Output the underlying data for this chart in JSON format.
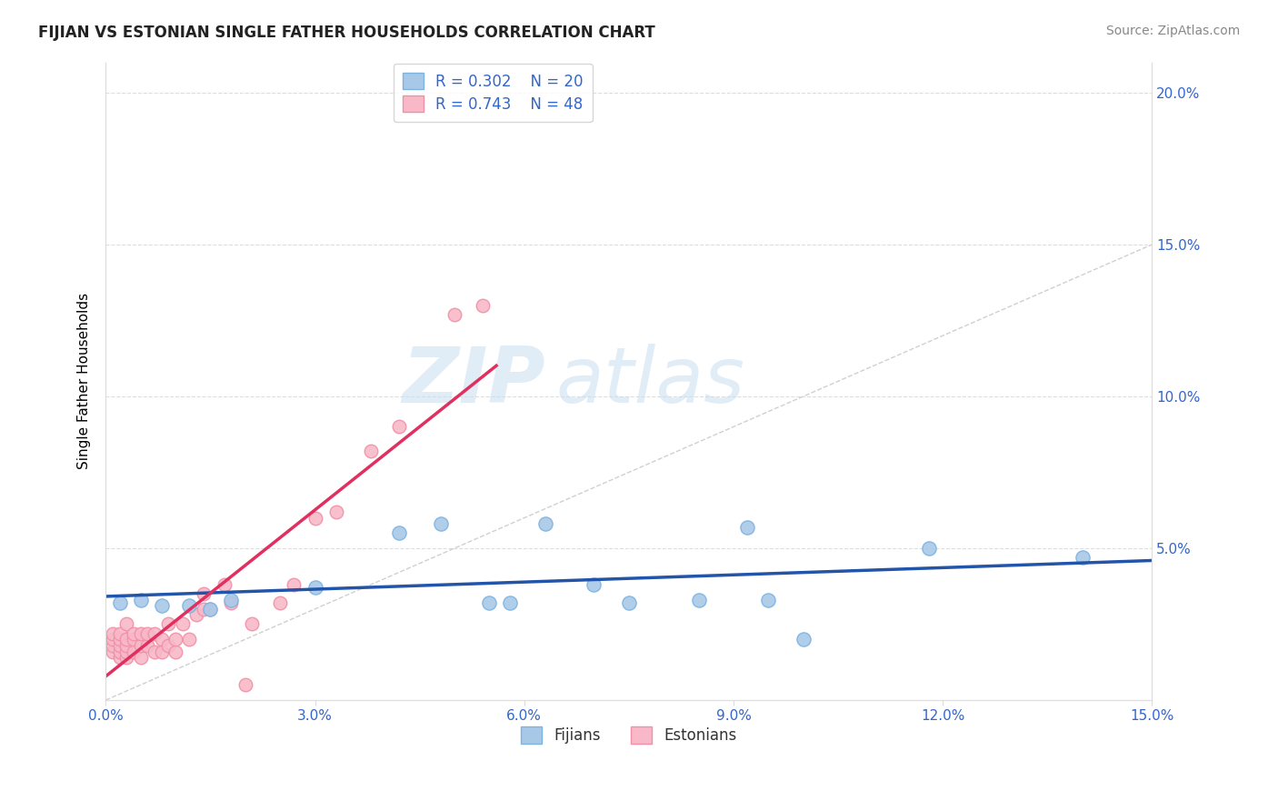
{
  "title": "FIJIAN VS ESTONIAN SINGLE FATHER HOUSEHOLDS CORRELATION CHART",
  "source": "Source: ZipAtlas.com",
  "ylabel_label": "Single Father Households",
  "xlim": [
    0.0,
    0.15
  ],
  "ylim": [
    0.0,
    0.21
  ],
  "xticks": [
    0.0,
    0.03,
    0.06,
    0.09,
    0.12,
    0.15
  ],
  "yticks": [
    0.05,
    0.1,
    0.15,
    0.2
  ],
  "fijian_color": "#a8c8e8",
  "fijian_edge_color": "#7eb3e0",
  "estonian_color": "#f8b8c8",
  "estonian_edge_color": "#f090a8",
  "fijian_R": 0.302,
  "fijian_N": 20,
  "estonian_R": 0.743,
  "estonian_N": 48,
  "diagonal_color": "#d0d0d0",
  "fijian_line_color": "#2255aa",
  "estonian_line_color": "#e03060",
  "label_color": "#3366cc",
  "watermark_zip": "ZIP",
  "watermark_atlas": "atlas",
  "fijian_scatter": [
    [
      0.002,
      0.032
    ],
    [
      0.005,
      0.033
    ],
    [
      0.008,
      0.031
    ],
    [
      0.012,
      0.031
    ],
    [
      0.015,
      0.03
    ],
    [
      0.018,
      0.033
    ],
    [
      0.03,
      0.037
    ],
    [
      0.042,
      0.055
    ],
    [
      0.048,
      0.058
    ],
    [
      0.055,
      0.032
    ],
    [
      0.058,
      0.032
    ],
    [
      0.063,
      0.058
    ],
    [
      0.07,
      0.038
    ],
    [
      0.075,
      0.032
    ],
    [
      0.085,
      0.033
    ],
    [
      0.092,
      0.057
    ],
    [
      0.095,
      0.033
    ],
    [
      0.1,
      0.02
    ],
    [
      0.118,
      0.05
    ],
    [
      0.14,
      0.047
    ]
  ],
  "estonian_scatter": [
    [
      0.001,
      0.016
    ],
    [
      0.001,
      0.018
    ],
    [
      0.001,
      0.02
    ],
    [
      0.001,
      0.022
    ],
    [
      0.002,
      0.014
    ],
    [
      0.002,
      0.016
    ],
    [
      0.002,
      0.018
    ],
    [
      0.002,
      0.02
    ],
    [
      0.002,
      0.022
    ],
    [
      0.003,
      0.014
    ],
    [
      0.003,
      0.016
    ],
    [
      0.003,
      0.018
    ],
    [
      0.003,
      0.02
    ],
    [
      0.003,
      0.025
    ],
    [
      0.004,
      0.016
    ],
    [
      0.004,
      0.02
    ],
    [
      0.004,
      0.022
    ],
    [
      0.005,
      0.014
    ],
    [
      0.005,
      0.018
    ],
    [
      0.005,
      0.022
    ],
    [
      0.006,
      0.018
    ],
    [
      0.006,
      0.022
    ],
    [
      0.007,
      0.016
    ],
    [
      0.007,
      0.022
    ],
    [
      0.008,
      0.016
    ],
    [
      0.008,
      0.02
    ],
    [
      0.009,
      0.018
    ],
    [
      0.009,
      0.025
    ],
    [
      0.01,
      0.016
    ],
    [
      0.01,
      0.02
    ],
    [
      0.011,
      0.025
    ],
    [
      0.012,
      0.02
    ],
    [
      0.013,
      0.028
    ],
    [
      0.014,
      0.03
    ],
    [
      0.014,
      0.035
    ],
    [
      0.015,
      0.03
    ],
    [
      0.017,
      0.038
    ],
    [
      0.018,
      0.032
    ],
    [
      0.02,
      0.005
    ],
    [
      0.021,
      0.025
    ],
    [
      0.025,
      0.032
    ],
    [
      0.027,
      0.038
    ],
    [
      0.03,
      0.06
    ],
    [
      0.033,
      0.062
    ],
    [
      0.038,
      0.082
    ],
    [
      0.042,
      0.09
    ],
    [
      0.05,
      0.127
    ],
    [
      0.054,
      0.13
    ]
  ]
}
